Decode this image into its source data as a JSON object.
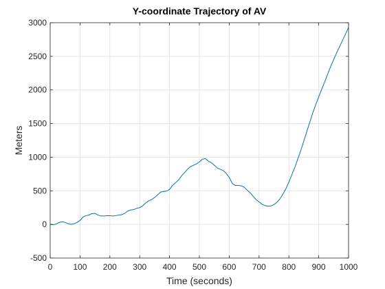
{
  "chart_data": {
    "type": "line",
    "title": "Y-coordinate Trajectory of AV",
    "xlabel": "Time (seconds)",
    "ylabel": "Meters",
    "xlim": [
      0,
      1000
    ],
    "ylim": [
      -500,
      3000
    ],
    "xticks": [
      0,
      100,
      200,
      300,
      400,
      500,
      600,
      700,
      800,
      900,
      1000
    ],
    "yticks": [
      -500,
      0,
      500,
      1000,
      1500,
      2000,
      2500,
      3000
    ],
    "grid": true,
    "line_color": "#0072BD",
    "series": [
      {
        "x": [
          0,
          10,
          20,
          30,
          40,
          50,
          60,
          70,
          80,
          90,
          100,
          110,
          120,
          130,
          140,
          150,
          160,
          170,
          180,
          190,
          200,
          210,
          220,
          230,
          240,
          250,
          260,
          270,
          280,
          290,
          300,
          310,
          320,
          330,
          340,
          350,
          360,
          370,
          380,
          390,
          400,
          410,
          420,
          430,
          440,
          450,
          460,
          470,
          480,
          490,
          500,
          510,
          520,
          530,
          540,
          550,
          560,
          570,
          580,
          590,
          600,
          610,
          620,
          630,
          640,
          650,
          660,
          670,
          680,
          690,
          700,
          710,
          720,
          730,
          740,
          750,
          760,
          770,
          780,
          790,
          800,
          820,
          840,
          860,
          880,
          900,
          920,
          940,
          960,
          980,
          1000
        ],
        "y": [
          0,
          -5,
          5,
          30,
          40,
          30,
          10,
          0,
          10,
          30,
          60,
          110,
          130,
          140,
          160,
          165,
          140,
          125,
          125,
          130,
          130,
          125,
          130,
          140,
          145,
          165,
          200,
          215,
          220,
          240,
          250,
          275,
          320,
          350,
          370,
          400,
          440,
          480,
          490,
          495,
          520,
          580,
          620,
          660,
          720,
          770,
          820,
          860,
          880,
          900,
          930,
          970,
          980,
          940,
          920,
          880,
          840,
          820,
          800,
          760,
          700,
          610,
          580,
          580,
          575,
          555,
          510,
          470,
          420,
          370,
          335,
          300,
          280,
          270,
          275,
          295,
          330,
          380,
          450,
          530,
          630,
          850,
          1100,
          1380,
          1660,
          1900,
          2120,
          2350,
          2550,
          2740,
          2930
        ]
      }
    ]
  }
}
